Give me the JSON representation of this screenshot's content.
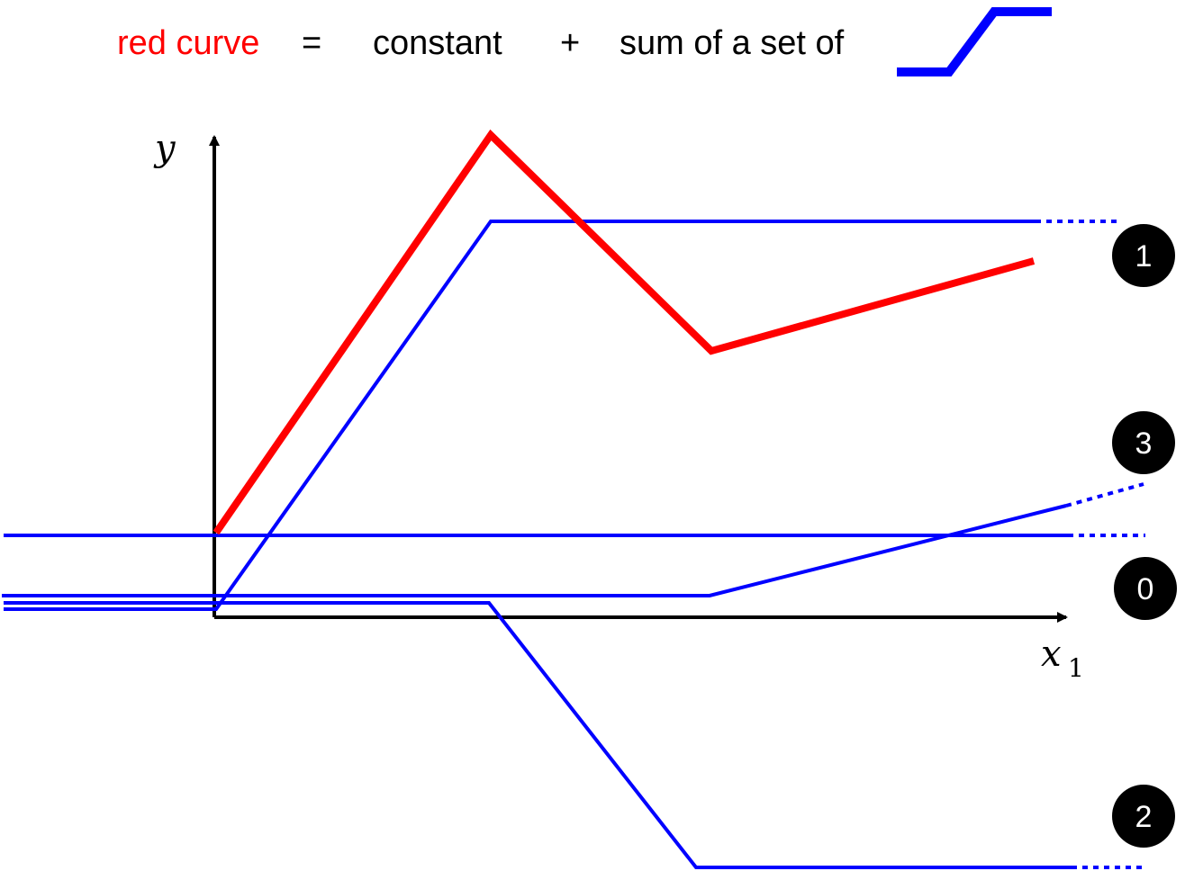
{
  "equation": {
    "red_curve": "red curve",
    "equals": "=",
    "constant": "constant",
    "plus": "+",
    "sum_of": "sum of a set of"
  },
  "axes": {
    "y_label": "y",
    "x_label": "x",
    "x_subscript": "1"
  },
  "badges": [
    "1",
    "3",
    "0",
    "2"
  ],
  "colors": {
    "red_curve": "#ff0000",
    "blue_lines": "#0000ff",
    "axes": "#000000",
    "badge_fill": "#000000",
    "badge_text": "#ffffff"
  },
  "icons": [
    "ramp-step-icon"
  ]
}
